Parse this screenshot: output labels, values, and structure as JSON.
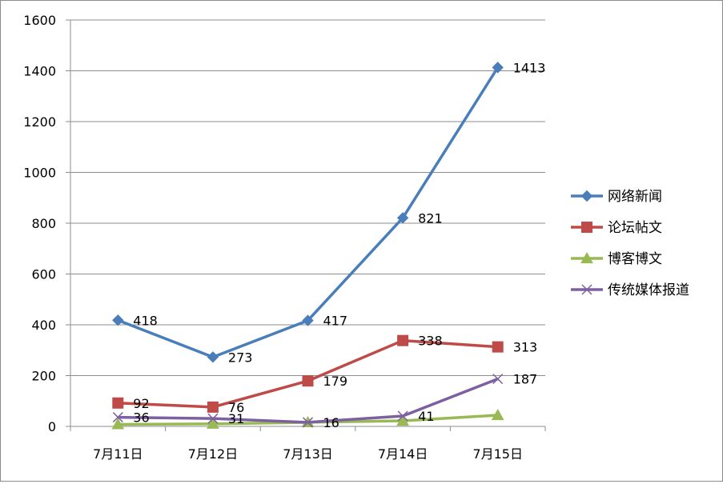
{
  "chart_data": {
    "type": "line",
    "categories": [
      "7月11日",
      "7月12日",
      "7月13日",
      "7月14日",
      "7月15日"
    ],
    "ylim": [
      0,
      1600
    ],
    "yticks": [
      0,
      200,
      400,
      600,
      800,
      1000,
      1200,
      1400,
      1600
    ],
    "grid": true,
    "legend_position": "right",
    "series": [
      {
        "name": "网络新闻",
        "values": [
          418,
          273,
          417,
          821,
          1413
        ],
        "labels": [
          "418",
          "273",
          "417",
          "821",
          "1413"
        ],
        "color": "#4a7ebb",
        "marker": "diamond"
      },
      {
        "name": "论坛帖文",
        "values": [
          92,
          76,
          179,
          338,
          313
        ],
        "labels": [
          "92",
          "76",
          "179",
          "338",
          "313"
        ],
        "color": "#be4b48",
        "marker": "square"
      },
      {
        "name": "博客博文",
        "values": [
          8,
          10,
          16,
          22,
          44
        ],
        "labels": [],
        "color": "#98b954",
        "marker": "triangle"
      },
      {
        "name": "传统媒体报道",
        "values": [
          36,
          31,
          16,
          41,
          187
        ],
        "labels": [
          "36",
          "31",
          "16",
          "41",
          "187"
        ],
        "color": "#7d60a0",
        "marker": "x"
      }
    ]
  }
}
